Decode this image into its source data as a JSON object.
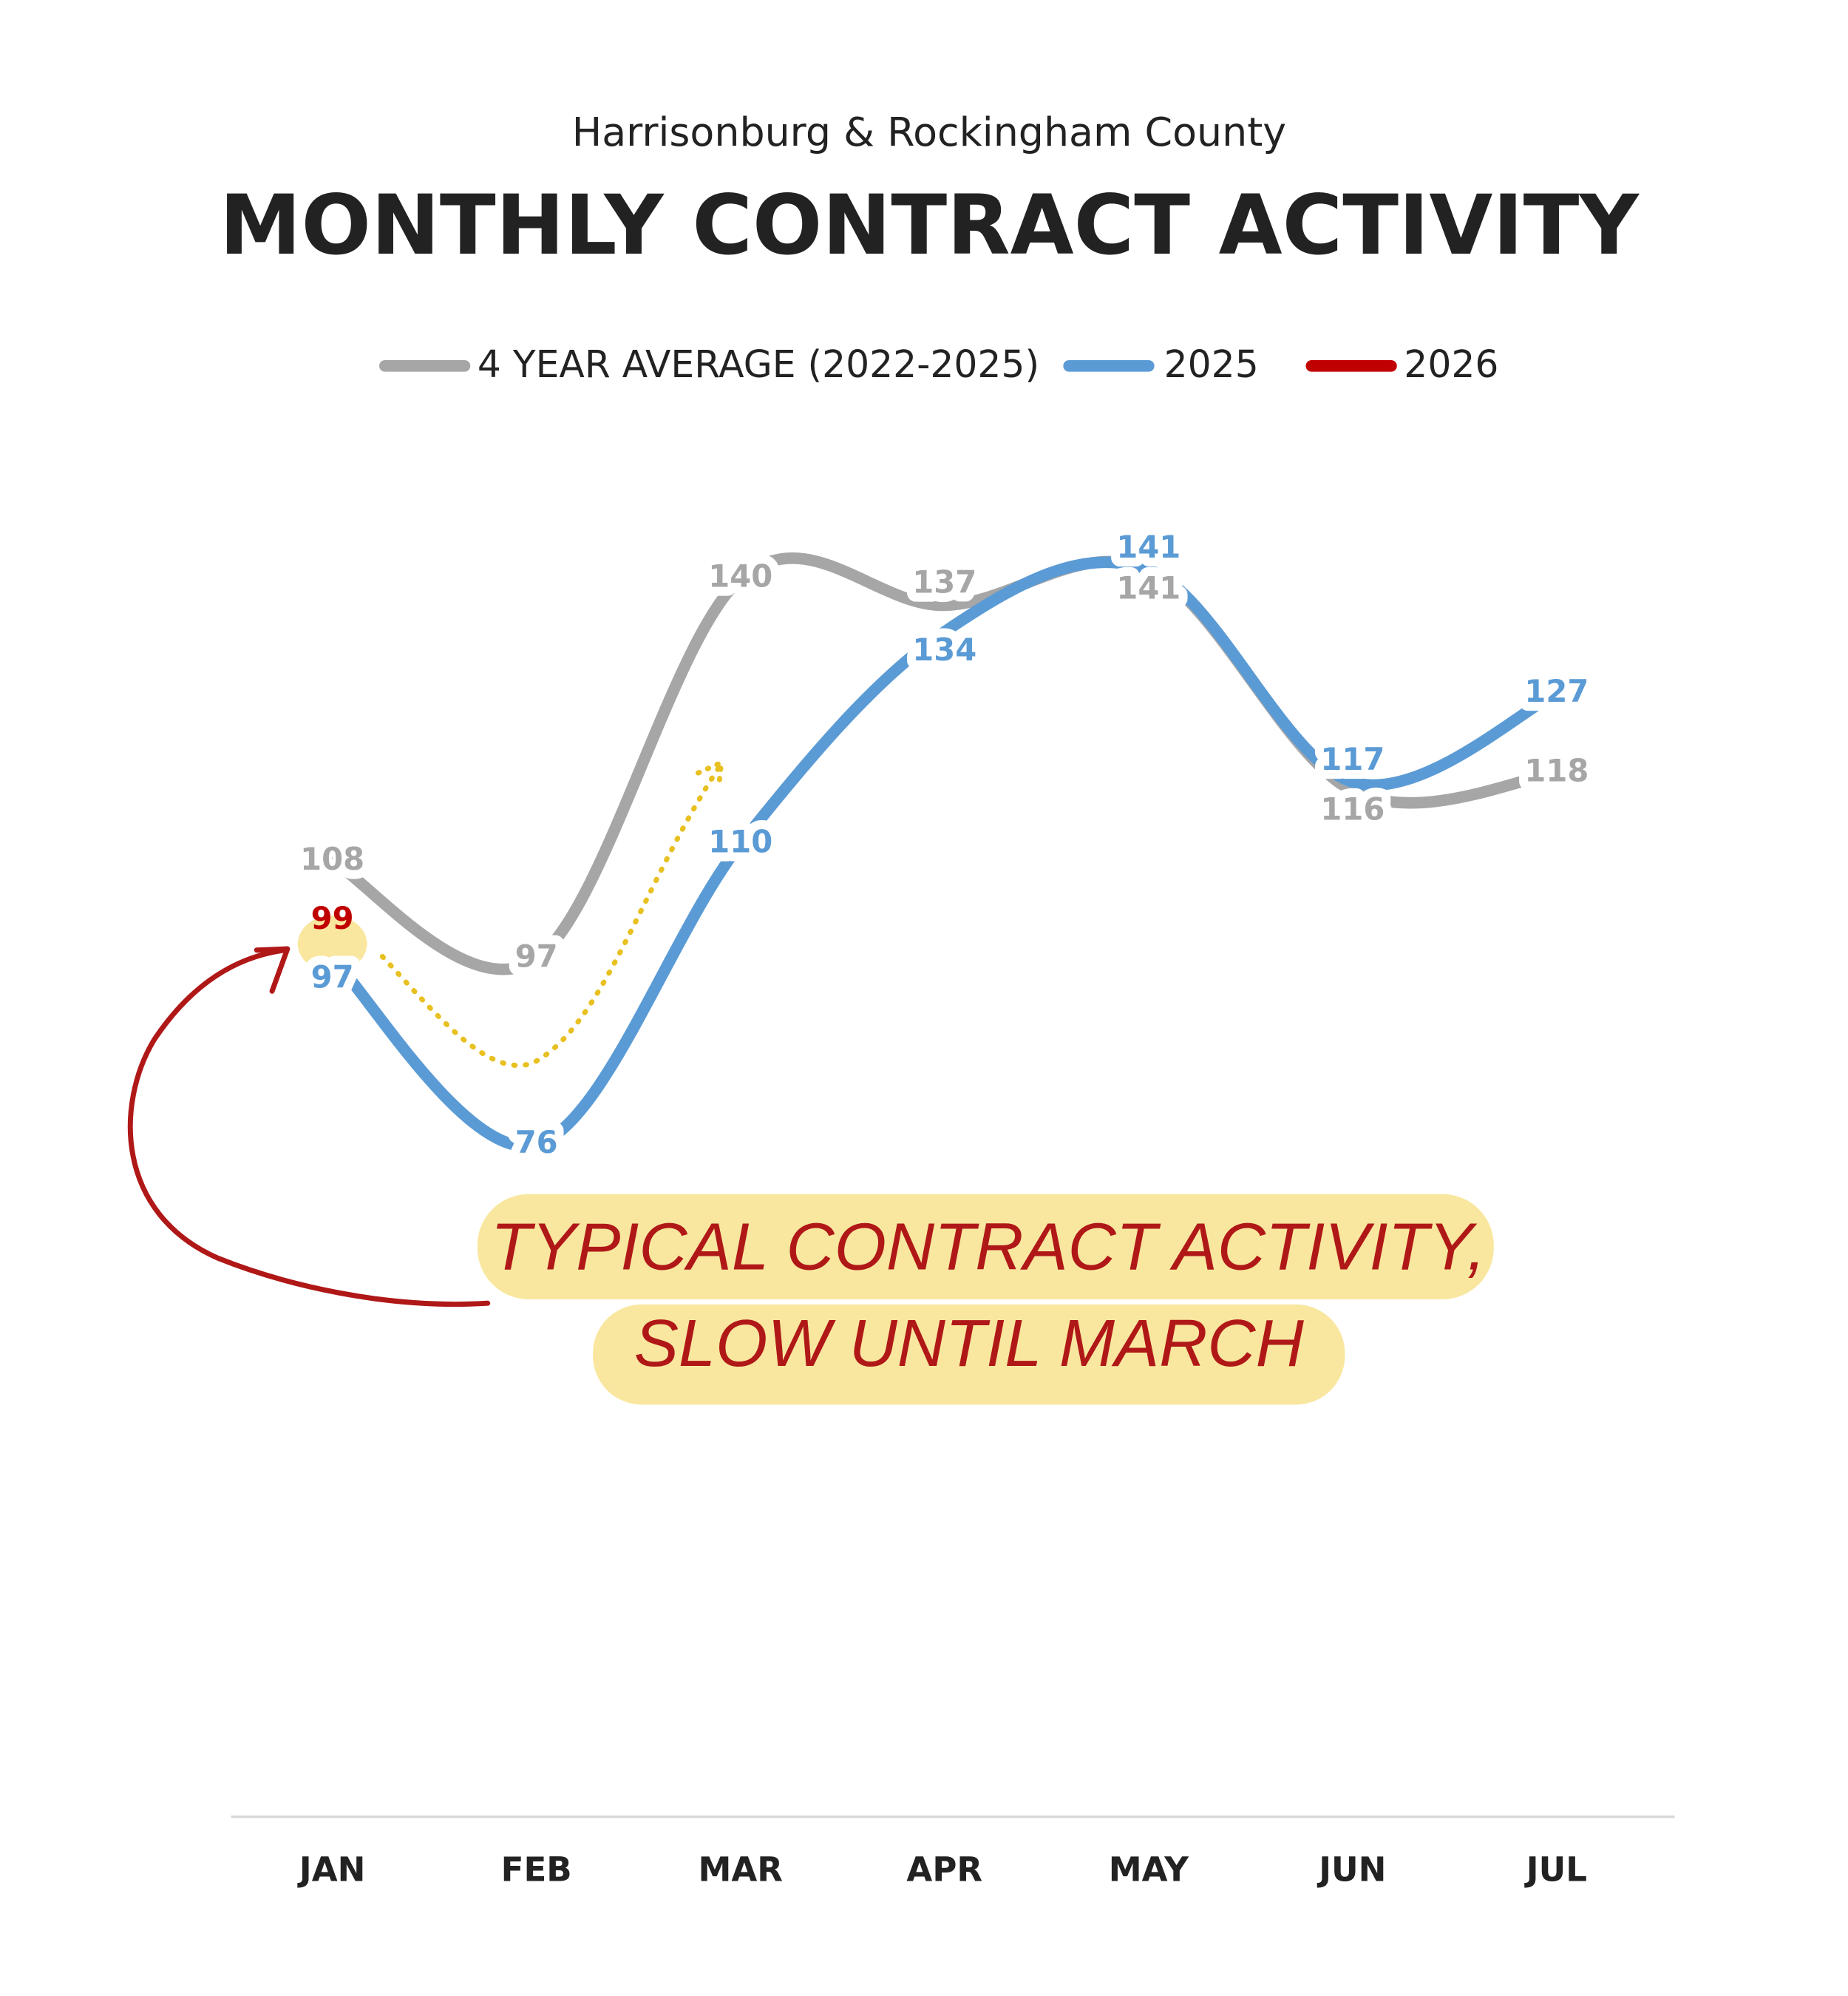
{
  "chart_data": {
    "type": "line",
    "subtitle": "Harrisonburg & Rockingham County",
    "title": "MONTHLY CONTRACT ACTIVITY",
    "categories": [
      "JAN",
      "FEB",
      "MAR",
      "APR",
      "MAY",
      "JUN",
      "JUL"
    ],
    "series": [
      {
        "name": "4 YEAR AVERAGE (2022-2025)",
        "color": "#a6a6a6",
        "label_color": "#a6a6a6",
        "values": [
          108,
          97,
          140,
          137,
          141,
          116,
          118
        ]
      },
      {
        "name": "2025",
        "color": "#5b9bd5",
        "label_color": "#5b9bd5",
        "values": [
          97,
          76,
          110,
          134,
          141,
          117,
          127
        ]
      },
      {
        "name": "2026",
        "color": "#c00000",
        "label_color": "#c00000",
        "values": [
          99,
          null,
          null,
          null,
          null,
          null,
          null
        ]
      }
    ],
    "ylim": [
      0,
      160
    ],
    "annotation": [
      "TYPICAL CONTRACT ACTIVITY,",
      "SLOW UNTIL MARCH"
    ]
  }
}
